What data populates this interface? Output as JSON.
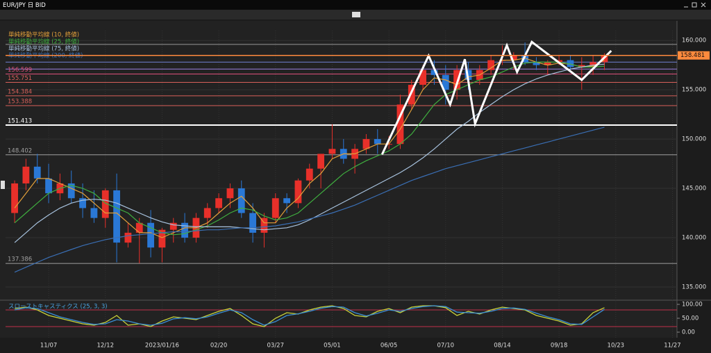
{
  "header": {
    "title": "EUR/JPY 日 BID"
  },
  "chart_data": [
    {
      "type": "candlestick",
      "categories": [
        null,
        null,
        null,
        null,
        null,
        null,
        null,
        null,
        null,
        null,
        null,
        null,
        null,
        null,
        null,
        null,
        null,
        null,
        null,
        null,
        null,
        null,
        null,
        null,
        null,
        null,
        null,
        null,
        null,
        null,
        null,
        null,
        null,
        null,
        null,
        null,
        null,
        null,
        null,
        null,
        null,
        null,
        null,
        null,
        null,
        null,
        null,
        null,
        null,
        null,
        null,
        null,
        null
      ],
      "open": [
        142.5,
        145.5,
        147.2,
        146.0,
        144.5,
        145.5,
        144.0,
        143.0,
        142.0,
        144.8,
        139.5,
        140.5,
        141.5,
        139.0,
        140.8,
        141.5,
        140.0,
        142.0,
        143.0,
        144.0,
        145.0,
        142.5,
        140.5,
        142.0,
        144.0,
        143.5,
        145.8,
        147.0,
        148.5,
        149.0,
        148.0,
        149.0,
        150.0,
        149.5,
        149.5,
        153.5,
        155.5,
        157.0,
        156.5,
        155.0,
        157.0,
        156.0,
        157.0,
        158.0,
        158.0,
        158.5,
        157.8,
        157.5,
        157.8,
        158.0,
        157.3,
        157.5,
        157.8
      ],
      "high": [
        145.8,
        148.0,
        148.5,
        147.5,
        146.5,
        146.8,
        145.5,
        144.8,
        145.0,
        146.5,
        141.5,
        142.0,
        142.8,
        141.0,
        142.0,
        142.5,
        142.5,
        143.5,
        144.5,
        145.5,
        145.8,
        143.5,
        142.5,
        144.5,
        144.5,
        146.0,
        147.5,
        148.5,
        151.5,
        150.0,
        149.5,
        150.5,
        151.0,
        150.3,
        154.5,
        156.0,
        157.5,
        158.0,
        157.5,
        157.5,
        157.8,
        157.5,
        158.5,
        159.5,
        158.8,
        159.8,
        158.3,
        158.0,
        158.5,
        158.5,
        158.3,
        158.5,
        158.7
      ],
      "low": [
        141.5,
        144.8,
        145.5,
        143.5,
        143.8,
        143.5,
        142.0,
        141.5,
        141.0,
        137.5,
        139.0,
        137.4,
        138.0,
        137.5,
        139.5,
        139.5,
        139.5,
        141.0,
        142.5,
        143.0,
        142.0,
        139.5,
        139.0,
        141.5,
        142.5,
        143.0,
        145.0,
        145.0,
        148.0,
        147.5,
        146.5,
        148.5,
        148.5,
        149.0,
        149.0,
        153.0,
        155.0,
        155.5,
        153.5,
        154.0,
        155.0,
        155.5,
        156.5,
        157.5,
        157.0,
        157.5,
        157.0,
        156.5,
        157.5,
        157.0,
        155.0,
        156.5,
        157.0
      ],
      "close": [
        145.5,
        147.2,
        146.0,
        144.5,
        145.5,
        144.0,
        143.0,
        142.0,
        144.8,
        139.5,
        140.5,
        141.5,
        139.0,
        140.8,
        141.5,
        140.0,
        142.0,
        143.0,
        144.0,
        145.0,
        142.5,
        140.5,
        142.0,
        144.0,
        143.5,
        145.8,
        147.0,
        148.5,
        149.0,
        148.0,
        149.0,
        150.0,
        149.5,
        149.5,
        153.5,
        155.5,
        157.0,
        156.5,
        155.0,
        157.0,
        156.0,
        157.0,
        158.0,
        158.0,
        158.5,
        157.8,
        157.5,
        157.8,
        158.0,
        157.3,
        157.5,
        157.8,
        158.5
      ],
      "up_color": "#e8302a",
      "down_color": "#2a78d6",
      "series": [
        {
          "name": "単純移動平均線 (10, 終値)",
          "color": "#e3a03a",
          "values": [
            143,
            144.5,
            146,
            146,
            145.5,
            145,
            144.5,
            143.5,
            142.5,
            142.5,
            141.5,
            140.5,
            140.5,
            140,
            140.5,
            141,
            141,
            141.5,
            142.5,
            143.5,
            144.2,
            143,
            141.5,
            141.5,
            143,
            144,
            145.5,
            146.5,
            148,
            148.5,
            148.5,
            149,
            149.5,
            149.5,
            151,
            153,
            155,
            156.2,
            156,
            155.5,
            156.3,
            156.5,
            157.2,
            158,
            158,
            158.2,
            157.8,
            157.5,
            157.7,
            157.6,
            157.3,
            157.4,
            158
          ]
        },
        {
          "name": "単純移動平均線 (25, 終値)",
          "color": "#3fae3f",
          "values": [
            141.5,
            142.5,
            143.5,
            144.5,
            145,
            145.3,
            145,
            144.5,
            143.5,
            143,
            142.5,
            141.5,
            141,
            140.5,
            140.3,
            140.4,
            140.8,
            141.2,
            141.8,
            142.5,
            143,
            142.8,
            142.2,
            141.8,
            142,
            142.5,
            143.5,
            144.5,
            145.5,
            146.5,
            147.2,
            147.8,
            148.3,
            148.8,
            149.5,
            150.5,
            152,
            153.5,
            154.5,
            155,
            155.5,
            156,
            156.3,
            156.8,
            157.3,
            157.7,
            157.8,
            157.8,
            157.8,
            157.6,
            157.3,
            157.3,
            157.4
          ]
        },
        {
          "name": "単純移動平均線 (75, 終値)",
          "color": "#a8c3df",
          "values": [
            139.5,
            140.5,
            141.5,
            142.3,
            143,
            143.5,
            143.8,
            143.9,
            143.8,
            143.5,
            143,
            142.5,
            142,
            141.6,
            141.3,
            141.2,
            141.1,
            141.1,
            141.1,
            141.1,
            141,
            140.9,
            140.8,
            140.9,
            141,
            141.3,
            141.8,
            142.4,
            143,
            143.6,
            144.2,
            144.8,
            145.4,
            146,
            146.6,
            147.3,
            148.1,
            149,
            150,
            151,
            151.8,
            152.7,
            153.5,
            154.3,
            155,
            155.6,
            156.1,
            156.5,
            156.8,
            157.1,
            157.3,
            157.5,
            157.6
          ]
        },
        {
          "name": "単純移動平均線 (200, 終値)",
          "color": "#3a6fb5",
          "values": [
            136.5,
            137,
            137.5,
            138,
            138.4,
            138.8,
            139.2,
            139.5,
            139.8,
            140,
            140.2,
            140.3,
            140.4,
            140.5,
            140.6,
            140.6,
            140.7,
            140.8,
            140.8,
            140.9,
            141,
            141,
            141.1,
            141.2,
            141.4,
            141.6,
            141.9,
            142.2,
            142.5,
            142.9,
            143.3,
            143.8,
            144.3,
            144.8,
            145.3,
            145.8,
            146.2,
            146.6,
            147,
            147.3,
            147.6,
            147.9,
            148.2,
            148.5,
            148.8,
            149.1,
            149.4,
            149.7,
            150,
            150.3,
            150.6,
            150.9,
            151.2
          ]
        }
      ],
      "levels": [
        {
          "value": 156.599,
          "color": "#e0507a"
        },
        {
          "value": 155.751,
          "color": "#d9605a"
        },
        {
          "value": 154.384,
          "color": "#d9605a"
        },
        {
          "value": 153.388,
          "color": "#d9605a"
        },
        {
          "value": 151.413,
          "color": "#ffffff"
        },
        {
          "value": 148.402,
          "color": "#a0a0a0"
        },
        {
          "value": 137.386,
          "color": "#a0a0a0"
        }
      ],
      "lines": [
        {
          "value": 159.6,
          "color": "#9a9a9a"
        },
        {
          "value": 157.8,
          "color": "#6f7fd0"
        },
        {
          "value": 157.1,
          "color": "#9a7fe0"
        }
      ],
      "last_price": 158.481,
      "last_color": "#ff8a3d",
      "annotations": [
        {
          "color": "#ffffff",
          "x": [
            32.4,
            36.5,
            38.4,
            39.7,
            40.6,
            43.4,
            44.3,
            45.6,
            50.0,
            52.6
          ],
          "y": [
            148.45,
            158.45,
            153.5,
            158.1,
            151.55,
            159.5,
            156.8,
            159.85,
            156.0,
            158.95
          ]
        }
      ],
      "xlim": [
        -0.8,
        58.4
      ],
      "xticks": [
        {
          "value": 3,
          "label": "11/07"
        },
        {
          "value": 8,
          "label": "12/12"
        },
        {
          "value": 13,
          "label": "2023/01/16"
        },
        {
          "value": 18,
          "label": "02/20"
        },
        {
          "value": 23,
          "label": "03/27"
        },
        {
          "value": 28,
          "label": "05/01"
        },
        {
          "value": 33,
          "label": "06/05"
        },
        {
          "value": 38,
          "label": "07/10"
        },
        {
          "value": 43,
          "label": "08/14"
        },
        {
          "value": 48,
          "label": "09/18"
        },
        {
          "value": 53,
          "label": "10/23"
        },
        {
          "value": 58,
          "label": "11/27"
        }
      ],
      "ylim": [
        133.8,
        161.0
      ],
      "yticks": [
        {
          "value": 135,
          "label": "135.000"
        },
        {
          "value": 140,
          "label": "140.000"
        },
        {
          "value": 145,
          "label": "145.000"
        },
        {
          "value": 150,
          "label": "150.000"
        },
        {
          "value": 155,
          "label": "155.000"
        },
        {
          "value": 160,
          "label": "160.000"
        }
      ],
      "grid": true
    },
    {
      "type": "line",
      "title": "スローストキャスティクス (25, 3, 3)",
      "series": [
        {
          "color": "#c8d33a",
          "values": [
            85,
            90,
            80,
            60,
            50,
            40,
            30,
            25,
            35,
            60,
            25,
            30,
            20,
            40,
            55,
            50,
            45,
            60,
            75,
            85,
            60,
            30,
            20,
            50,
            70,
            65,
            80,
            90,
            95,
            85,
            60,
            55,
            75,
            85,
            70,
            90,
            95,
            95,
            88,
            60,
            75,
            65,
            80,
            90,
            85,
            80,
            60,
            50,
            40,
            25,
            30,
            70,
            88
          ]
        },
        {
          "color": "#3a8fd6",
          "values": [
            80,
            88,
            85,
            70,
            55,
            45,
            35,
            28,
            30,
            45,
            40,
            30,
            25,
            32,
            48,
            52,
            48,
            55,
            68,
            80,
            70,
            45,
            25,
            38,
            60,
            66,
            75,
            86,
            92,
            90,
            70,
            58,
            68,
            80,
            75,
            85,
            92,
            95,
            92,
            72,
            70,
            68,
            75,
            85,
            87,
            82,
            68,
            55,
            45,
            30,
            28,
            55,
            82
          ]
        }
      ],
      "bands": [
        20,
        80
      ],
      "band_color": "#c0304a",
      "xlim": [
        -0.8,
        58.4
      ],
      "ylim": [
        -15,
        110
      ],
      "yticks": [
        {
          "value": 0,
          "label": "0.00"
        },
        {
          "value": 50,
          "label": "50.00"
        },
        {
          "value": 100,
          "label": "100.00"
        }
      ]
    }
  ]
}
